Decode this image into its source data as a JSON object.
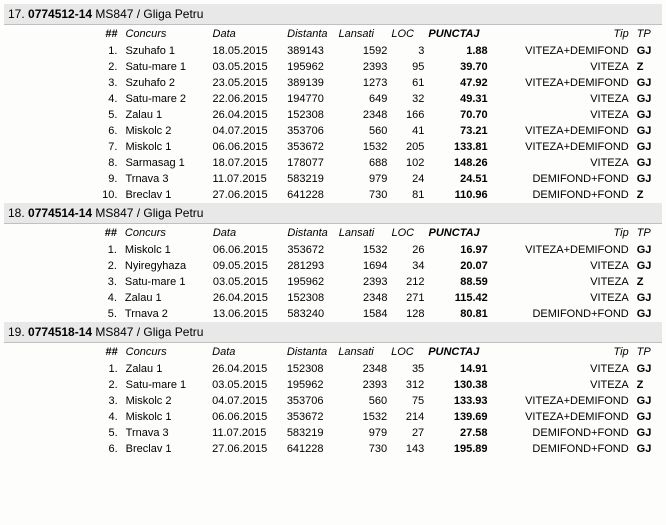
{
  "table_headers": {
    "num": "##",
    "concurs": "Concurs",
    "data": "Data",
    "distanta": "Distanta",
    "lansati": "Lansati",
    "loc": "LOC",
    "punctaj": "PUNCTAJ",
    "tip": "Tip",
    "tp": "TP"
  },
  "pigeons": [
    {
      "idx": "17.",
      "ring": "0774512-14",
      "owner": " MS847 / Gliga Petru",
      "rows": [
        {
          "n": "1.",
          "concurs": "Szuhafo 1",
          "data": "18.05.2015",
          "dist": "389143",
          "lansati": "1592",
          "loc": "3",
          "punctaj": "1.88",
          "tip": "VITEZA+DEMIFOND",
          "tp": "GJ"
        },
        {
          "n": "2.",
          "concurs": "Satu-mare 1",
          "data": "03.05.2015",
          "dist": "195962",
          "lansati": "2393",
          "loc": "95",
          "punctaj": "39.70",
          "tip": "VITEZA",
          "tp": "Z"
        },
        {
          "n": "3.",
          "concurs": "Szuhafo 2",
          "data": "23.05.2015",
          "dist": "389139",
          "lansati": "1273",
          "loc": "61",
          "punctaj": "47.92",
          "tip": "VITEZA+DEMIFOND",
          "tp": "GJ"
        },
        {
          "n": "4.",
          "concurs": "Satu-mare 2",
          "data": "22.06.2015",
          "dist": "194770",
          "lansati": "649",
          "loc": "32",
          "punctaj": "49.31",
          "tip": "VITEZA",
          "tp": "GJ"
        },
        {
          "n": "5.",
          "concurs": "Zalau 1",
          "data": "26.04.2015",
          "dist": "152308",
          "lansati": "2348",
          "loc": "166",
          "punctaj": "70.70",
          "tip": "VITEZA",
          "tp": "GJ"
        },
        {
          "n": "6.",
          "concurs": "Miskolc 2",
          "data": "04.07.2015",
          "dist": "353706",
          "lansati": "560",
          "loc": "41",
          "punctaj": "73.21",
          "tip": "VITEZA+DEMIFOND",
          "tp": "GJ"
        },
        {
          "n": "7.",
          "concurs": "Miskolc 1",
          "data": "06.06.2015",
          "dist": "353672",
          "lansati": "1532",
          "loc": "205",
          "punctaj": "133.81",
          "tip": "VITEZA+DEMIFOND",
          "tp": "GJ"
        },
        {
          "n": "8.",
          "concurs": "Sarmasag 1",
          "data": "18.07.2015",
          "dist": "178077",
          "lansati": "688",
          "loc": "102",
          "punctaj": "148.26",
          "tip": "VITEZA",
          "tp": "GJ"
        },
        {
          "n": "9.",
          "concurs": "Trnava 3",
          "data": "11.07.2015",
          "dist": "583219",
          "lansati": "979",
          "loc": "24",
          "punctaj": "24.51",
          "tip": "DEMIFOND+FOND",
          "tp": "GJ"
        },
        {
          "n": "10.",
          "concurs": "Breclav 1",
          "data": "27.06.2015",
          "dist": "641228",
          "lansati": "730",
          "loc": "81",
          "punctaj": "110.96",
          "tip": "DEMIFOND+FOND",
          "tp": "Z"
        }
      ]
    },
    {
      "idx": "18.",
      "ring": "0774514-14",
      "owner": " MS847 / Gliga Petru",
      "rows": [
        {
          "n": "1.",
          "concurs": "Miskolc 1",
          "data": "06.06.2015",
          "dist": "353672",
          "lansati": "1532",
          "loc": "26",
          "punctaj": "16.97",
          "tip": "VITEZA+DEMIFOND",
          "tp": "GJ"
        },
        {
          "n": "2.",
          "concurs": "Nyiregyhaza",
          "data": "09.05.2015",
          "dist": "281293",
          "lansati": "1694",
          "loc": "34",
          "punctaj": "20.07",
          "tip": "VITEZA",
          "tp": "GJ"
        },
        {
          "n": "3.",
          "concurs": "Satu-mare 1",
          "data": "03.05.2015",
          "dist": "195962",
          "lansati": "2393",
          "loc": "212",
          "punctaj": "88.59",
          "tip": "VITEZA",
          "tp": "Z"
        },
        {
          "n": "4.",
          "concurs": "Zalau 1",
          "data": "26.04.2015",
          "dist": "152308",
          "lansati": "2348",
          "loc": "271",
          "punctaj": "115.42",
          "tip": "VITEZA",
          "tp": "GJ"
        },
        {
          "n": "5.",
          "concurs": "Trnava 2",
          "data": "13.06.2015",
          "dist": "583240",
          "lansati": "1584",
          "loc": "128",
          "punctaj": "80.81",
          "tip": "DEMIFOND+FOND",
          "tp": "GJ"
        }
      ]
    },
    {
      "idx": "19.",
      "ring": "0774518-14",
      "owner": " MS847 / Gliga Petru",
      "rows": [
        {
          "n": "1.",
          "concurs": "Zalau 1",
          "data": "26.04.2015",
          "dist": "152308",
          "lansati": "2348",
          "loc": "35",
          "punctaj": "14.91",
          "tip": "VITEZA",
          "tp": "GJ"
        },
        {
          "n": "2.",
          "concurs": "Satu-mare 1",
          "data": "03.05.2015",
          "dist": "195962",
          "lansati": "2393",
          "loc": "312",
          "punctaj": "130.38",
          "tip": "VITEZA",
          "tp": "Z"
        },
        {
          "n": "3.",
          "concurs": "Miskolc 2",
          "data": "04.07.2015",
          "dist": "353706",
          "lansati": "560",
          "loc": "75",
          "punctaj": "133.93",
          "tip": "VITEZA+DEMIFOND",
          "tp": "GJ"
        },
        {
          "n": "4.",
          "concurs": "Miskolc 1",
          "data": "06.06.2015",
          "dist": "353672",
          "lansati": "1532",
          "loc": "214",
          "punctaj": "139.69",
          "tip": "VITEZA+DEMIFOND",
          "tp": "GJ"
        },
        {
          "n": "5.",
          "concurs": "Trnava 3",
          "data": "11.07.2015",
          "dist": "583219",
          "lansati": "979",
          "loc": "27",
          "punctaj": "27.58",
          "tip": "DEMIFOND+FOND",
          "tp": "GJ"
        },
        {
          "n": "6.",
          "concurs": "Breclav 1",
          "data": "27.06.2015",
          "dist": "641228",
          "lansati": "730",
          "loc": "143",
          "punctaj": "195.89",
          "tip": "DEMIFOND+FOND",
          "tp": "GJ"
        }
      ]
    }
  ]
}
